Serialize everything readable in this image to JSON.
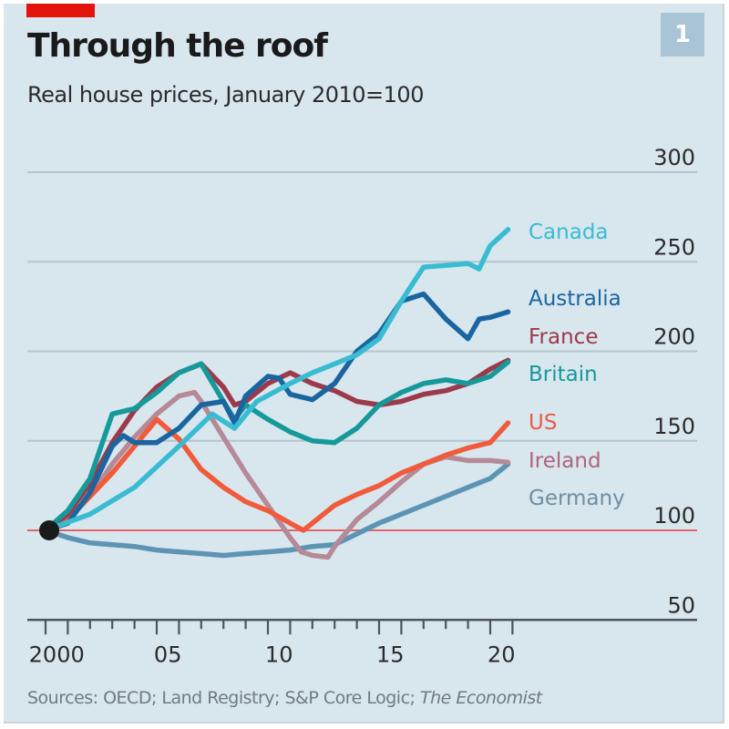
{
  "header": {
    "title": "Through the roof",
    "subtitle": "Real house prices, January 2010=100",
    "chart_number": "1"
  },
  "footer": {
    "sources_prefix": "Sources: OECD; Land Registry; S&P Core Logic; ",
    "sources_italic": "The Economist"
  },
  "colors": {
    "background": "#d8e6ee",
    "accent_red": "#e3120b",
    "gridline": "#b7c4cb",
    "baseline": "#e06666",
    "axis": "#4d555a",
    "start_dot": "#1a1a1a"
  },
  "chart_data": {
    "type": "line",
    "title": "Through the roof",
    "subtitle": "Real house prices, January 2010=100",
    "xlabel": "",
    "ylabel": "",
    "xlim": [
      2000,
      2021
    ],
    "ylim": [
      50,
      300
    ],
    "yticks": [
      50,
      100,
      150,
      200,
      250,
      300
    ],
    "ytick_labels": [
      "50",
      "100",
      "150",
      "200",
      "250",
      "300"
    ],
    "xticks": [
      2000,
      2005,
      2010,
      2015,
      2020
    ],
    "xtick_labels": [
      "2000",
      "05",
      "10",
      "15",
      "20"
    ],
    "baseline": 100,
    "grid": true,
    "legend": "inline-right",
    "series": [
      {
        "name": "Canada",
        "color": "#39bcd2",
        "x": [
          2000,
          2002,
          2004,
          2006,
          2007.5,
          2008.5,
          2009.5,
          2011,
          2012,
          2013,
          2014,
          2015,
          2016,
          2017,
          2018,
          2019,
          2019.5,
          2020,
          2020.8
        ],
        "values": [
          100,
          109,
          124,
          147,
          165,
          157,
          172,
          182,
          188,
          193,
          198,
          207,
          228,
          247,
          248,
          249,
          246,
          259,
          268
        ]
      },
      {
        "name": "Australia",
        "color": "#1a65a0",
        "x": [
          2000,
          2001,
          2002,
          2003,
          2003.5,
          2004,
          2005,
          2006,
          2007,
          2008,
          2008.5,
          2009,
          2010,
          2010.5,
          2011,
          2012,
          2013,
          2014,
          2015,
          2016,
          2017,
          2018,
          2019,
          2019.5,
          2020,
          2020.8
        ],
        "values": [
          100,
          104,
          121,
          147,
          153,
          149,
          149,
          157,
          170,
          172,
          160,
          175,
          186,
          185,
          176,
          173,
          182,
          200,
          210,
          228,
          232,
          218,
          207,
          218,
          219,
          222
        ]
      },
      {
        "name": "France",
        "color": "#9b3a4a",
        "x": [
          2000,
          2001,
          2002,
          2003,
          2004,
          2005,
          2006,
          2007,
          2008,
          2008.5,
          2009,
          2010,
          2011,
          2012,
          2013,
          2014,
          2015,
          2016,
          2017,
          2018,
          2019,
          2020,
          2020.8
        ],
        "values": [
          100,
          109,
          126,
          149,
          167,
          180,
          188,
          193,
          180,
          170,
          172,
          182,
          188,
          182,
          178,
          172,
          170,
          172,
          176,
          178,
          182,
          190,
          195
        ]
      },
      {
        "name": "Britain",
        "color": "#16999a",
        "x": [
          2000,
          2001,
          2002,
          2003,
          2004,
          2005,
          2006,
          2007,
          2008,
          2008.5,
          2009,
          2010,
          2011,
          2012,
          2013,
          2014,
          2015,
          2016,
          2017,
          2018,
          2019,
          2020,
          2020.8
        ],
        "values": [
          100,
          111,
          129,
          165,
          168,
          177,
          188,
          193,
          172,
          162,
          170,
          162,
          155,
          150,
          149,
          157,
          170,
          177,
          182,
          184,
          182,
          186,
          194
        ]
      },
      {
        "name": "US",
        "color": "#f15a3a",
        "x": [
          2000,
          2001,
          2002,
          2003,
          2004,
          2005,
          2006,
          2007,
          2008,
          2009,
          2010,
          2011,
          2011.6,
          2012,
          2013,
          2014,
          2015,
          2016,
          2017,
          2018,
          2019,
          2020,
          2020.8
        ],
        "values": [
          100,
          106,
          119,
          132,
          147,
          162,
          151,
          134,
          124,
          116,
          111,
          104,
          100,
          104,
          114,
          120,
          125,
          132,
          137,
          142,
          146,
          149,
          160
        ]
      },
      {
        "name": "Ireland",
        "color": "#b58a96",
        "x": [
          2000,
          2001,
          2002,
          2003,
          2004,
          2005,
          2006,
          2006.7,
          2007,
          2008,
          2009,
          2010,
          2011,
          2011.5,
          2012,
          2012.7,
          2013,
          2014,
          2015,
          2016,
          2017,
          2018,
          2019,
          2020,
          2020.8
        ],
        "values": [
          100,
          107,
          119,
          137,
          152,
          165,
          175,
          177,
          172,
          152,
          132,
          114,
          96,
          88,
          86,
          85,
          91,
          106,
          116,
          127,
          137,
          141,
          139,
          139,
          138
        ]
      },
      {
        "name": "Germany",
        "color": "#5d94b4",
        "x": [
          2000,
          2001,
          2002,
          2003,
          2004,
          2005,
          2006,
          2007,
          2008,
          2009,
          2010,
          2011,
          2012,
          2013,
          2014,
          2015,
          2016,
          2017,
          2018,
          2019,
          2020,
          2020.8
        ],
        "values": [
          100,
          96,
          93,
          92,
          91,
          89,
          88,
          87,
          86,
          87,
          88,
          89,
          91,
          92,
          98,
          104,
          109,
          114,
          119,
          124,
          129,
          137
        ]
      }
    ],
    "series_labels": [
      {
        "name": "Canada",
        "color": "#39bcd2"
      },
      {
        "name": "Australia",
        "color": "#1a65a0"
      },
      {
        "name": "France",
        "color": "#9b3a4a"
      },
      {
        "name": "Britain",
        "color": "#16999a"
      },
      {
        "name": "US",
        "color": "#ee5b45"
      },
      {
        "name": "Ireland",
        "color": "#b0647a"
      },
      {
        "name": "Germany",
        "color": "#6d8fa3"
      }
    ]
  }
}
